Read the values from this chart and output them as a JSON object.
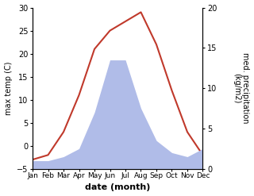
{
  "months": [
    "Jan",
    "Feb",
    "Mar",
    "Apr",
    "May",
    "Jun",
    "Jul",
    "Aug",
    "Sep",
    "Oct",
    "Nov",
    "Dec"
  ],
  "x": [
    1,
    2,
    3,
    4,
    5,
    6,
    7,
    8,
    9,
    10,
    11,
    12
  ],
  "temp": [
    -3,
    -2,
    3,
    11,
    21,
    25,
    27,
    29,
    22,
    12,
    3,
    -2
  ],
  "precip": [
    1.0,
    1.0,
    1.5,
    2.5,
    7.0,
    13.5,
    13.5,
    7.5,
    3.5,
    2.0,
    1.5,
    2.5
  ],
  "temp_color": "#c0392b",
  "precip_color": "#b0bce8",
  "ylabel_left": "max temp (C)",
  "ylabel_right": "med. precipitation\n(kg/m2)",
  "xlabel": "date (month)",
  "ylim_left": [
    -5,
    30
  ],
  "ylim_right": [
    0,
    20
  ],
  "yticks_left": [
    -5,
    0,
    5,
    10,
    15,
    20,
    25,
    30
  ],
  "yticks_right": [
    0,
    5,
    10,
    15,
    20
  ],
  "background_color": "#ffffff"
}
